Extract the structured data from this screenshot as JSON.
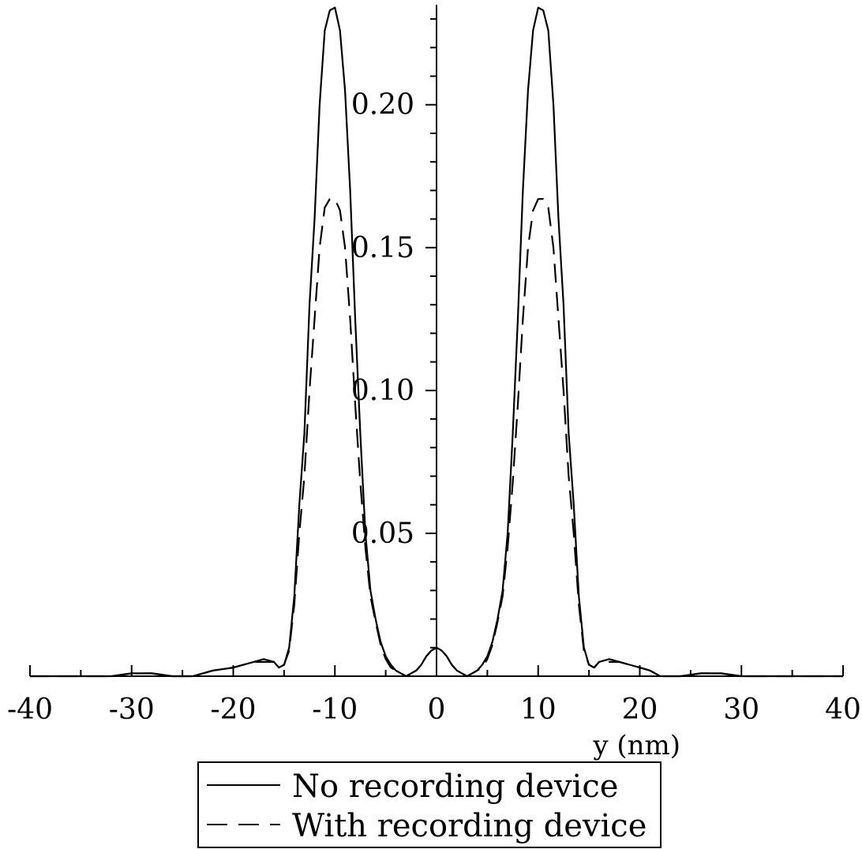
{
  "chart_data": {
    "type": "line",
    "title": "",
    "xlabel": "y (nm)",
    "ylabel": "",
    "xlim": [
      -40,
      40
    ],
    "ylim": [
      0,
      0.235
    ],
    "grid": false,
    "legend_placement": "bottom-center",
    "x_ticks": [
      -40,
      -30,
      -20,
      -10,
      0,
      10,
      20,
      30,
      40
    ],
    "x_tick_labels": [
      "-40",
      "-30",
      "-20",
      "-10",
      "0",
      "10",
      "20",
      "30",
      "40"
    ],
    "y_ticks": [
      0.05,
      0.1,
      0.15,
      0.2
    ],
    "y_tick_labels": [
      "0.05",
      "0.10",
      "0.15",
      "0.20"
    ],
    "series": [
      {
        "name": "No recording device",
        "style": "solid",
        "color": "#000000",
        "x": [
          -40,
          -35,
          -32,
          -30,
          -28,
          -26,
          -24,
          -22,
          -20,
          -19,
          -18,
          -17,
          -16,
          -15.5,
          -15,
          -14.5,
          -14,
          -13.5,
          -13,
          -12.5,
          -12,
          -11.5,
          -11,
          -10.5,
          -10,
          -9.5,
          -9,
          -8.5,
          -8,
          -7.5,
          -7,
          -6.5,
          -6,
          -5.5,
          -5,
          -4.5,
          -4,
          -3.5,
          -3,
          -2.5,
          -2,
          -1.5,
          -1,
          -0.5,
          0,
          0.5,
          1,
          1.5,
          2,
          2.5,
          3,
          3.5,
          4,
          4.5,
          5,
          5.5,
          6,
          6.5,
          7,
          7.5,
          8,
          8.5,
          9,
          9.5,
          10,
          10.5,
          11,
          11.5,
          12,
          12.5,
          13,
          13.5,
          14,
          14.5,
          15,
          15.5,
          16,
          17,
          18,
          19,
          20,
          21,
          22,
          24,
          26,
          28,
          30,
          32,
          35,
          40
        ],
        "y": [
          0.0,
          0.0,
          0.0,
          0.001,
          0.001,
          0.0,
          0.0,
          0.002,
          0.003,
          0.004,
          0.005,
          0.006,
          0.005,
          0.003,
          0.004,
          0.01,
          0.028,
          0.06,
          0.085,
          0.13,
          0.16,
          0.2,
          0.226,
          0.233,
          0.234,
          0.226,
          0.205,
          0.17,
          0.125,
          0.085,
          0.05,
          0.03,
          0.02,
          0.012,
          0.007,
          0.004,
          0.002,
          0.001,
          0.0,
          0.001,
          0.002,
          0.004,
          0.007,
          0.009,
          0.01,
          0.009,
          0.007,
          0.004,
          0.002,
          0.001,
          0.0,
          0.001,
          0.002,
          0.004,
          0.007,
          0.012,
          0.02,
          0.03,
          0.05,
          0.085,
          0.125,
          0.17,
          0.205,
          0.226,
          0.234,
          0.233,
          0.226,
          0.2,
          0.16,
          0.13,
          0.085,
          0.06,
          0.028,
          0.01,
          0.004,
          0.003,
          0.005,
          0.006,
          0.005,
          0.004,
          0.003,
          0.002,
          0.0,
          0.0,
          0.001,
          0.001,
          0.0,
          0.0,
          0.0,
          0.0
        ]
      },
      {
        "name": "With recording device",
        "style": "dashed",
        "color": "#000000",
        "x": [
          -40,
          -35,
          -32,
          -30,
          -28,
          -26,
          -24,
          -22,
          -20,
          -19,
          -18,
          -17,
          -16,
          -15.5,
          -15,
          -14.5,
          -14,
          -13.5,
          -13,
          -12.5,
          -12,
          -11.5,
          -11,
          -10.5,
          -10,
          -9.5,
          -9,
          -8.5,
          -8,
          -7.5,
          -7,
          -6.5,
          -6,
          -5.5,
          -5,
          -4.5,
          -4,
          -3.5,
          -3,
          -2.5,
          -2,
          -1.5,
          -1,
          -0.5,
          0,
          0.5,
          1,
          1.5,
          2,
          2.5,
          3,
          3.5,
          4,
          4.5,
          5,
          5.5,
          6,
          6.5,
          7,
          7.5,
          8,
          8.5,
          9,
          9.5,
          10,
          10.5,
          11,
          11.5,
          12,
          12.5,
          13,
          13.5,
          14,
          14.5,
          15,
          15.5,
          16,
          17,
          18,
          19,
          20,
          21,
          22,
          24,
          26,
          28,
          30,
          32,
          35,
          40
        ],
        "y": [
          0.0,
          0.0,
          0.0,
          0.001,
          0.001,
          0.0,
          0.0,
          0.002,
          0.003,
          0.004,
          0.005,
          0.005,
          0.005,
          0.003,
          0.004,
          0.009,
          0.025,
          0.05,
          0.07,
          0.1,
          0.125,
          0.15,
          0.164,
          0.167,
          0.167,
          0.163,
          0.15,
          0.125,
          0.095,
          0.068,
          0.045,
          0.028,
          0.019,
          0.011,
          0.006,
          0.003,
          0.002,
          0.001,
          0.0,
          0.001,
          0.002,
          0.004,
          0.007,
          0.009,
          0.01,
          0.009,
          0.007,
          0.004,
          0.002,
          0.001,
          0.0,
          0.001,
          0.002,
          0.003,
          0.006,
          0.011,
          0.019,
          0.028,
          0.045,
          0.068,
          0.095,
          0.125,
          0.15,
          0.163,
          0.167,
          0.167,
          0.164,
          0.15,
          0.125,
          0.1,
          0.07,
          0.05,
          0.025,
          0.009,
          0.004,
          0.003,
          0.005,
          0.005,
          0.005,
          0.004,
          0.003,
          0.002,
          0.0,
          0.0,
          0.001,
          0.001,
          0.0,
          0.0,
          0.0,
          0.0
        ]
      }
    ]
  }
}
